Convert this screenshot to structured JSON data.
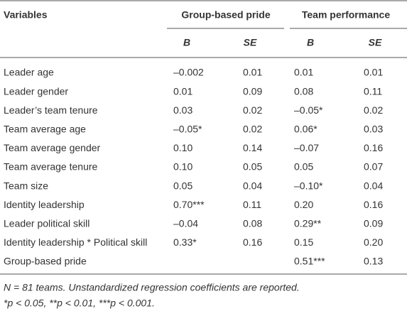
{
  "table": {
    "headers": {
      "variables": "Variables",
      "groups": [
        "Group-based pride",
        "Team performance"
      ],
      "sub": [
        "B",
        "SE",
        "B",
        "SE"
      ]
    },
    "rows": [
      {
        "label": "Leader age",
        "values": [
          "–0.002",
          "0.01",
          "0.01",
          "0.01"
        ]
      },
      {
        "label": "Leader gender",
        "values": [
          "0.01",
          "0.09",
          "0.08",
          "0.11"
        ]
      },
      {
        "label": "Leader’s team tenure",
        "values": [
          "0.03",
          "0.02",
          "–0.05*",
          "0.02"
        ]
      },
      {
        "label": "Team average age",
        "values": [
          "–0.05*",
          "0.02",
          "0.06*",
          "0.03"
        ]
      },
      {
        "label": "Team average gender",
        "values": [
          "0.10",
          "0.14",
          "–0.07",
          "0.16"
        ]
      },
      {
        "label": "Team average tenure",
        "values": [
          "0.10",
          "0.05",
          "0.05",
          "0.07"
        ]
      },
      {
        "label": "Team size",
        "values": [
          "0.05",
          "0.04",
          "–0.10*",
          "0.04"
        ]
      },
      {
        "label": "Identity leadership",
        "values": [
          "0.70***",
          "0.11",
          "0.20",
          "0.16"
        ]
      },
      {
        "label": "Leader political skill",
        "values": [
          "–0.04",
          "0.08",
          "0.29**",
          "0.09"
        ]
      },
      {
        "label": "Identity leadership * Political skill",
        "values": [
          "0.33*",
          "0.16",
          "0.15",
          "0.20"
        ]
      },
      {
        "label": "Group-based pride",
        "values": [
          null,
          null,
          "0.51***",
          "0.13"
        ]
      }
    ],
    "notes": [
      "N = 81 teams. Unstandardized regression coefficients are reported.",
      "*p < 0.05, **p < 0.01, ***p < 0.001."
    ]
  }
}
